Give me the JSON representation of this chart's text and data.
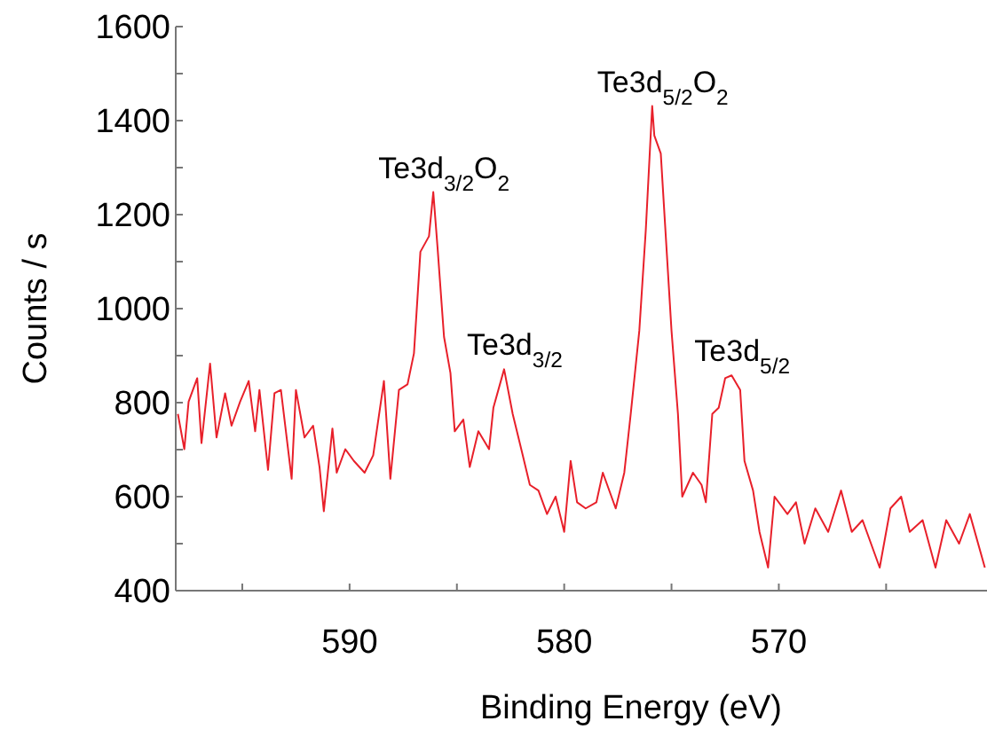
{
  "chart_data": {
    "type": "line",
    "xlabel": "Binding Energy (eV)",
    "ylabel": "Counts / s",
    "xlim": [
      598.1,
      560.3
    ],
    "ylim": [
      400,
      1600
    ],
    "xticks": [
      {
        "value": 595,
        "label": null
      },
      590,
      {
        "value": 585,
        "label": null
      },
      580,
      {
        "value": 575,
        "label": null
      },
      570,
      {
        "value": 565,
        "label": null
      }
    ],
    "yticks": [
      400,
      {
        "value": 500,
        "label": null
      },
      600,
      {
        "value": 700,
        "label": null
      },
      800,
      {
        "value": 900,
        "label": null
      },
      1000,
      {
        "value": 1100,
        "label": null
      },
      1200,
      {
        "value": 1300,
        "label": null
      },
      1400,
      {
        "value": 1500,
        "label": null
      },
      1600
    ],
    "grid": false,
    "marker": "none",
    "line_style": "solid",
    "annotations": [
      {
        "text": "Te3d$_{3/2}$O$_{2}$",
        "x": 586.1,
        "y": 1248
      },
      {
        "text": "Te3d$_{3/2}$",
        "x": 582.8,
        "y": 871
      },
      {
        "text": "Te3d$_{5/2}$O$_{2}$",
        "x": 575.9,
        "y": 1431
      },
      {
        "text": "Te3d$_{5/2}$",
        "x": 572.2,
        "y": 858
      }
    ],
    "series": [
      {
        "color": "#e8202a",
        "x": [
          598.0,
          597.7,
          597.5,
          597.1,
          596.9,
          596.5,
          596.2,
          595.8,
          595.5,
          595.1,
          594.7,
          594.4,
          594.2,
          593.8,
          593.5,
          593.2,
          592.7,
          592.5,
          592.1,
          591.7,
          591.4,
          591.2,
          590.8,
          590.6,
          590.2,
          589.8,
          589.3,
          588.9,
          588.4,
          588.1,
          587.7,
          587.3,
          587.0,
          586.7,
          586.3,
          586.1,
          585.9,
          585.6,
          585.3,
          585.1,
          584.7,
          584.4,
          584.0,
          583.5,
          583.3,
          582.8,
          582.4,
          582.0,
          581.6,
          581.2,
          580.8,
          580.4,
          580.0,
          579.7,
          579.4,
          579.0,
          578.5,
          578.2,
          577.6,
          577.2,
          576.9,
          576.5,
          576.2,
          575.9,
          575.8,
          575.5,
          575.3,
          575.0,
          574.7,
          574.5,
          574.0,
          573.6,
          573.4,
          573.1,
          572.8,
          572.5,
          572.2,
          571.8,
          571.6,
          571.2,
          570.9,
          570.5,
          570.2,
          569.6,
          569.2,
          568.8,
          568.3,
          567.7,
          567.1,
          566.6,
          566.1,
          565.3,
          564.8,
          564.3,
          563.9,
          563.3,
          562.7,
          562.2,
          561.6,
          561.1,
          560.4
        ],
        "values": [
          776,
          701,
          802,
          852,
          714,
          883,
          726,
          820,
          751,
          802,
          846,
          739,
          827,
          657,
          820,
          827,
          638,
          827,
          726,
          751,
          663,
          569,
          745,
          651,
          701,
          676,
          651,
          688,
          846,
          638,
          827,
          839,
          905,
          1121,
          1154,
          1248,
          1129,
          940,
          863,
          739,
          764,
          663,
          739,
          701,
          789,
          871,
          776,
          701,
          625,
          613,
          563,
          600,
          525,
          676,
          588,
          575,
          588,
          651,
          575,
          651,
          776,
          953,
          1166,
          1431,
          1368,
          1330,
          1179,
          953,
          776,
          600,
          651,
          625,
          588,
          776,
          789,
          852,
          858,
          827,
          676,
          613,
          525,
          449,
          600,
          563,
          588,
          500,
          575,
          525,
          613,
          525,
          550,
          449,
          575,
          600,
          525,
          550,
          449,
          550,
          500,
          563,
          449
        ]
      }
    ]
  }
}
